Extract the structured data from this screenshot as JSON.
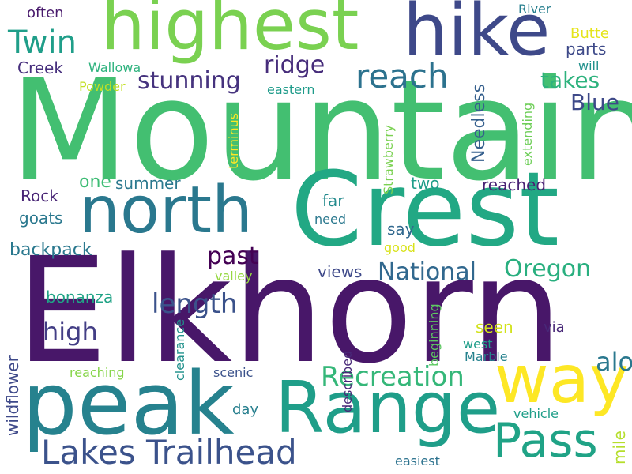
{
  "words": [
    {
      "text": "Mountain",
      "color": "#43bf71"
    },
    {
      "text": "Elkhorn",
      "color": "#481769"
    },
    {
      "text": "Crest",
      "color": "#22a884"
    },
    {
      "text": "highest",
      "color": "#7ad151"
    },
    {
      "text": "hike",
      "color": "#3e4989"
    },
    {
      "text": "north",
      "color": "#2a788e"
    },
    {
      "text": "peak",
      "color": "#26828e"
    },
    {
      "text": "Range",
      "color": "#1f9e89"
    },
    {
      "text": "way",
      "color": "#fde725"
    },
    {
      "text": "Pass",
      "color": "#20a386"
    },
    {
      "text": "Lakes Trailhead",
      "color": "#3b528b"
    },
    {
      "text": "reach",
      "color": "#2c728e"
    },
    {
      "text": "Twin",
      "color": "#1f9e89"
    },
    {
      "text": "Recreation",
      "color": "#35b779"
    },
    {
      "text": "National",
      "color": "#31688e"
    },
    {
      "text": "stunning",
      "color": "#46337e"
    },
    {
      "text": "ridge",
      "color": "#472d7b"
    },
    {
      "text": "Blue",
      "color": "#3e4989"
    },
    {
      "text": "takes",
      "color": "#2db27d"
    },
    {
      "text": "Oregon",
      "color": "#29af7f"
    },
    {
      "text": "along",
      "color": "#2a788e"
    },
    {
      "text": "length",
      "color": "#3b528b"
    },
    {
      "text": "high",
      "color": "#433e85"
    },
    {
      "text": "past",
      "color": "#440154"
    },
    {
      "text": "often",
      "color": "#481a6c"
    },
    {
      "text": "Creek",
      "color": "#472f7d"
    },
    {
      "text": "Wallowa",
      "color": "#2db27d"
    },
    {
      "text": "River",
      "color": "#277f8e"
    },
    {
      "text": "Butte",
      "color": "#e5e419"
    },
    {
      "text": "parts",
      "color": "#3e4a89"
    },
    {
      "text": "will",
      "color": "#21918c"
    },
    {
      "text": "Powder",
      "color": "#c2df23"
    },
    {
      "text": "eastern",
      "color": "#1e9b8a"
    },
    {
      "text": "Needless",
      "color": "#355f8d"
    },
    {
      "text": "terminus",
      "color": "#fde725"
    },
    {
      "text": "Strawberry",
      "color": "#7ad151"
    },
    {
      "text": "extending",
      "color": "#6ece58"
    },
    {
      "text": "one",
      "color": "#3dbc74"
    },
    {
      "text": "summer",
      "color": "#2a788e"
    },
    {
      "text": "two",
      "color": "#1f9e89"
    },
    {
      "text": "reached",
      "color": "#482173"
    },
    {
      "text": "Rock",
      "color": "#482475"
    },
    {
      "text": "far",
      "color": "#238a8d"
    },
    {
      "text": "goats",
      "color": "#2a788e"
    },
    {
      "text": "need",
      "color": "#2a788e"
    },
    {
      "text": "say",
      "color": "#31688e"
    },
    {
      "text": "good",
      "color": "#d8e219"
    },
    {
      "text": "backpack",
      "color": "#2a788e"
    },
    {
      "text": "valley",
      "color": "#95d840"
    },
    {
      "text": "views",
      "color": "#3e4989"
    },
    {
      "text": "bonanza",
      "color": "#20a386"
    },
    {
      "text": "seen",
      "color": "#d2e21b"
    },
    {
      "text": "wildflower",
      "color": "#3e4989"
    },
    {
      "text": "clearance",
      "color": "#21918c"
    },
    {
      "text": "described",
      "color": "#482878"
    },
    {
      "text": "beginning",
      "color": "#5ec962"
    },
    {
      "text": "west",
      "color": "#1f9e89"
    },
    {
      "text": "via",
      "color": "#482878"
    },
    {
      "text": "Marble",
      "color": "#26828e"
    },
    {
      "text": "mile",
      "color": "#b5de2b"
    },
    {
      "text": "reaching",
      "color": "#86d549"
    },
    {
      "text": "scenic",
      "color": "#3b528b"
    },
    {
      "text": "day",
      "color": "#277f8e"
    },
    {
      "text": "vehicle",
      "color": "#1f9e89"
    },
    {
      "text": "easiest",
      "color": "#2c728e"
    }
  ]
}
